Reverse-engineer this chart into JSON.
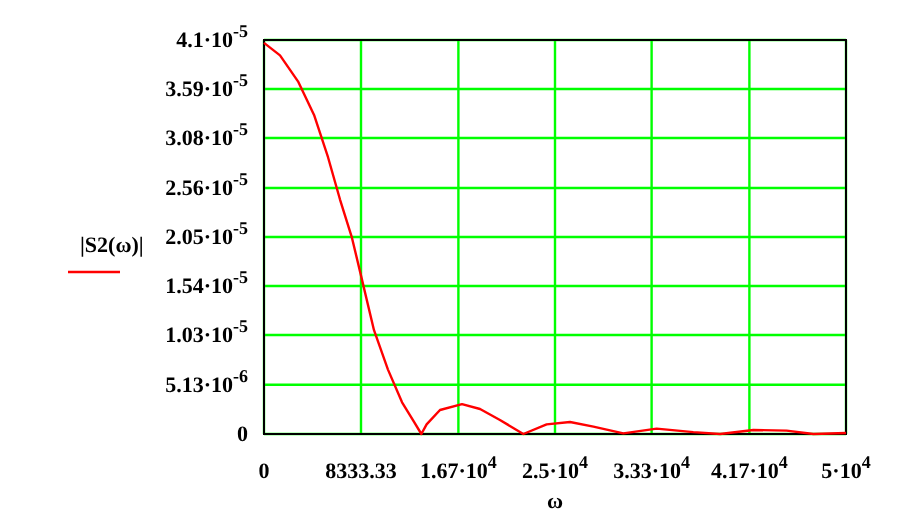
{
  "chart_data": {
    "type": "line",
    "xlabel": "ω",
    "legend": "left",
    "grid": true,
    "x": [
      0,
      1375,
      2920,
      4300,
      5500,
      6530,
      7560,
      8370,
      9450,
      10650,
      11860,
      12890,
      13520,
      13970,
      15120,
      17010,
      18560,
      20270,
      22280,
      24280,
      26290,
      28300,
      30870,
      33730,
      36880,
      39180,
      42040,
      44900,
      47200,
      50000
    ],
    "series": [
      {
        "name": "|S2(ω)|",
        "color": "#ff0000",
        "values": [
          4.07e-05,
          3.94e-05,
          3.67e-05,
          3.32e-05,
          2.88e-05,
          2.44e-05,
          2.04e-05,
          1.63e-05,
          1.08e-05,
          6.7e-06,
          3.3e-06,
          1.25e-06,
          0,
          1e-06,
          2.5e-06,
          3.1e-06,
          2.6e-06,
          1.46e-06,
          0,
          1e-06,
          1.25e-06,
          7.7e-07,
          6e-08,
          5.6e-07,
          2e-07,
          0,
          4.2e-07,
          3.5e-07,
          0,
          1e-07
        ]
      }
    ],
    "xlim": [
      0,
      50000
    ],
    "ylim": [
      0,
      4.1e-05
    ],
    "xticks": [
      0,
      8333.33,
      {
        "value": 16700,
        "label": "1.67·10$^{4}$"
      },
      {
        "value": 25000,
        "label": "2.5·10$^{4}$"
      },
      {
        "value": 33300,
        "label": "3.33·10$^{4}$"
      },
      {
        "value": 41700,
        "label": "4.17·10$^{4}$"
      },
      {
        "value": 50000,
        "label": "5·10$^{4}$"
      }
    ],
    "yticks": [
      0,
      {
        "value": 5.13e-06,
        "label": "5.13·10$^{-6}$"
      },
      {
        "value": 1.03e-05,
        "label": "1.03·10$^{-5}$"
      },
      {
        "value": 1.54e-05,
        "label": "1.54·10$^{-5}$"
      },
      {
        "value": 2.05e-05,
        "label": "2.05·10$^{-5}$"
      },
      {
        "value": 2.56e-05,
        "label": "2.56·10$^{-5}$"
      },
      {
        "value": 3.08e-05,
        "label": "3.08·10$^{-5}$"
      },
      {
        "value": 3.59e-05,
        "label": "3.59·10$^{-5}$"
      },
      {
        "value": 4.1e-05,
        "label": "4.1·10$^{-5}$"
      }
    ]
  }
}
